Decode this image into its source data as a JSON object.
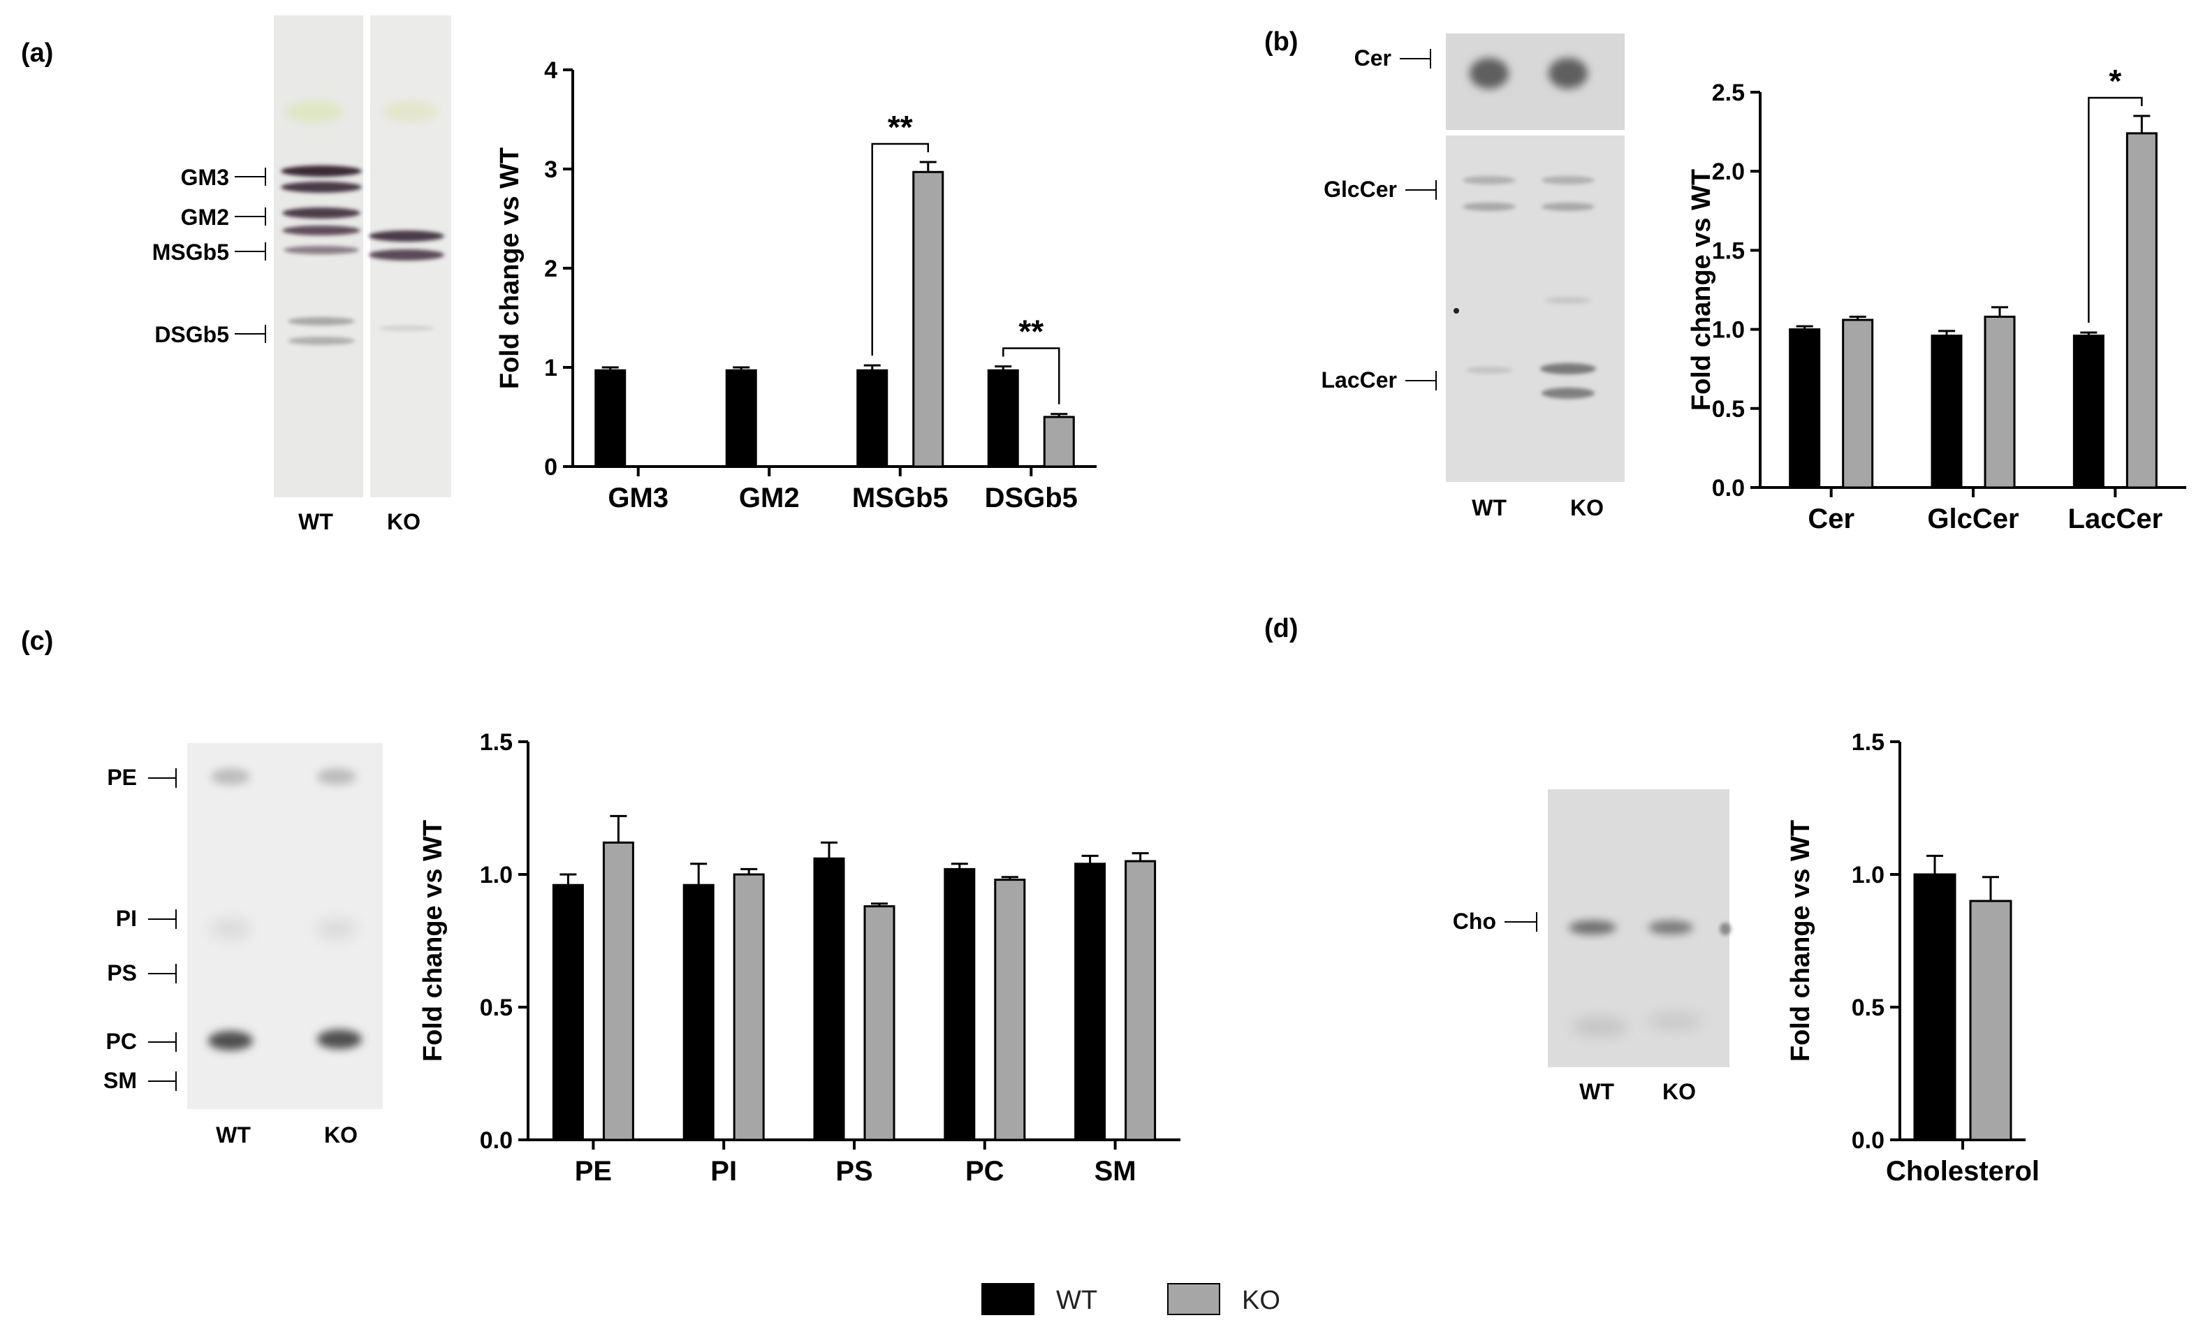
{
  "panels": [
    {
      "letter": "(a)",
      "blot": {
        "lanes": [
          "WT",
          "KO"
        ],
        "labels": [
          "GM3",
          "GM2",
          "MSGb5",
          "DSGb5"
        ]
      }
    },
    {
      "letter": "(b)",
      "blot": {
        "lanes": [
          "WT",
          "KO"
        ],
        "labels": [
          "Cer",
          "GlcCer",
          "LacCer"
        ]
      }
    },
    {
      "letter": "(c)",
      "blot": {
        "lanes": [
          "WT",
          "KO"
        ],
        "labels": [
          "PE",
          "PI",
          "PS",
          "PC",
          "SM"
        ]
      }
    },
    {
      "letter": "(d)",
      "blot": {
        "lanes": [
          "WT",
          "KO"
        ],
        "labels": [
          "Cho"
        ]
      }
    }
  ],
  "legend": {
    "placement": "bottom-center",
    "items": [
      {
        "label": "WT",
        "color": "#000000"
      },
      {
        "label": "KO",
        "color": "#a6a6a6"
      }
    ]
  },
  "chart_data": [
    {
      "type": "bar",
      "panel": "(a)",
      "ylabel": "Fold change vs WT",
      "ylim": [
        0,
        4
      ],
      "yticks": [
        "0",
        "1",
        "2",
        "3",
        "4"
      ],
      "categories": [
        "GM3",
        "GM2",
        "MSGb5",
        "DSGb5"
      ],
      "series": [
        {
          "name": "WT",
          "values": [
            0.97,
            0.97,
            0.97,
            0.97
          ],
          "errors": [
            0.03,
            0.03,
            0.05,
            0.04
          ]
        },
        {
          "name": "KO",
          "values": [
            null,
            null,
            2.97,
            0.5
          ],
          "errors": [
            null,
            null,
            0.1,
            0.03
          ]
        }
      ],
      "significance": [
        {
          "category": "MSGb5",
          "label": "**"
        },
        {
          "category": "DSGb5",
          "label": "**"
        }
      ]
    },
    {
      "type": "bar",
      "panel": "(b)",
      "ylabel": "Fold change vs WT",
      "ylim": [
        0,
        2.5
      ],
      "yticks": [
        "0.0",
        "0.5",
        "1.0",
        "1.5",
        "2.0",
        "2.5"
      ],
      "categories": [
        "Cer",
        "GlcCer",
        "LacCer"
      ],
      "series": [
        {
          "name": "WT",
          "values": [
            1.0,
            0.96,
            0.96
          ],
          "errors": [
            0.02,
            0.03,
            0.02
          ]
        },
        {
          "name": "KO",
          "values": [
            1.06,
            1.08,
            2.24
          ],
          "errors": [
            0.02,
            0.06,
            0.11
          ]
        }
      ],
      "significance": [
        {
          "category": "LacCer",
          "label": "*"
        }
      ]
    },
    {
      "type": "bar",
      "panel": "(c)",
      "ylabel": "Fold change vs WT",
      "ylim": [
        0,
        1.5
      ],
      "yticks": [
        "0.0",
        "0.5",
        "1.0",
        "1.5"
      ],
      "categories": [
        "PE",
        "PI",
        "PS",
        "PC",
        "SM"
      ],
      "series": [
        {
          "name": "WT",
          "values": [
            0.96,
            0.96,
            1.06,
            1.02,
            1.04
          ],
          "errors": [
            0.04,
            0.08,
            0.06,
            0.02,
            0.03
          ]
        },
        {
          "name": "KO",
          "values": [
            1.12,
            1.0,
            0.88,
            0.98,
            1.05
          ],
          "errors": [
            0.1,
            0.02,
            0.01,
            0.01,
            0.03
          ]
        }
      ],
      "significance": []
    },
    {
      "type": "bar",
      "panel": "(d)",
      "ylabel": "Fold change vs WT",
      "ylim": [
        0,
        1.5
      ],
      "yticks": [
        "0.0",
        "0.5",
        "1.0",
        "1.5"
      ],
      "categories": [
        "Cholesterol"
      ],
      "series": [
        {
          "name": "WT",
          "values": [
            1.0
          ],
          "errors": [
            0.07
          ]
        },
        {
          "name": "KO",
          "values": [
            0.9
          ],
          "errors": [
            0.09
          ]
        }
      ],
      "significance": []
    }
  ]
}
